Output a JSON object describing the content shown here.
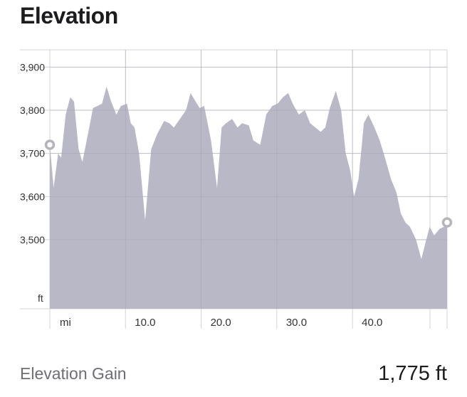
{
  "header": {
    "title": "Elevation"
  },
  "chart_data": {
    "type": "area",
    "title": "",
    "xlabel": "",
    "ylabel": "",
    "y_unit_label": "ft",
    "x_unit_label": "mi",
    "xlim": [
      0,
      52.5
    ],
    "ylim": [
      3340,
      3940
    ],
    "y_ticks": [
      3500,
      3600,
      3700,
      3800,
      3900
    ],
    "y_tick_labels": [
      "3,500",
      "3,600",
      "3,700",
      "3,800",
      "3,900"
    ],
    "x_ticks": [
      10,
      20,
      30,
      40
    ],
    "x_tick_labels": [
      "10.0",
      "20.0",
      "30.0",
      "40.0"
    ],
    "grid": true,
    "colors": {
      "area": "#b9b8c6",
      "grid": "#d4d4d8",
      "marker": "#b4b4bc"
    },
    "markers": [
      {
        "x": 0,
        "y": 3720
      },
      {
        "x": 52.5,
        "y": 3540
      }
    ],
    "x": [
      0,
      0.5,
      1.1,
      1.5,
      2.1,
      2.7,
      3.2,
      3.8,
      4.3,
      5.1,
      5.7,
      6.3,
      6.9,
      7.5,
      8.1,
      8.8,
      9.4,
      10.2,
      10.7,
      11.2,
      11.8,
      12.6,
      13.4,
      14.2,
      15.1,
      15.8,
      16.4,
      17.2,
      18.0,
      18.6,
      19.1,
      19.8,
      20.4,
      21.3,
      22.1,
      22.7,
      23.3,
      24.1,
      24.8,
      25.4,
      26.3,
      26.9,
      27.8,
      28.6,
      29.4,
      30.1,
      30.8,
      31.5,
      32.1,
      32.9,
      33.7,
      34.4,
      35.1,
      35.8,
      36.4,
      37.0,
      37.8,
      38.5,
      39.1,
      39.7,
      40.2,
      40.8,
      41.5,
      42.1,
      42.9,
      43.6,
      44.3,
      45.1,
      45.8,
      46.4,
      47.0,
      47.6,
      48.4,
      49.1,
      49.6,
      50.2,
      50.8,
      51.5,
      52.1,
      52.5
    ],
    "y": [
      3720,
      3620,
      3700,
      3690,
      3790,
      3830,
      3820,
      3710,
      3680,
      3750,
      3805,
      3810,
      3815,
      3855,
      3820,
      3790,
      3810,
      3815,
      3770,
      3760,
      3700,
      3545,
      3710,
      3745,
      3775,
      3770,
      3760,
      3780,
      3800,
      3840,
      3825,
      3805,
      3810,
      3730,
      3620,
      3760,
      3770,
      3780,
      3760,
      3770,
      3765,
      3730,
      3720,
      3790,
      3810,
      3815,
      3830,
      3840,
      3815,
      3790,
      3800,
      3770,
      3760,
      3750,
      3760,
      3805,
      3845,
      3800,
      3700,
      3660,
      3600,
      3640,
      3770,
      3790,
      3760,
      3730,
      3690,
      3640,
      3610,
      3560,
      3540,
      3530,
      3500,
      3455,
      3490,
      3530,
      3510,
      3525,
      3530,
      3540
    ]
  },
  "summary": {
    "label": "Elevation Gain",
    "value": "1,775 ft"
  }
}
